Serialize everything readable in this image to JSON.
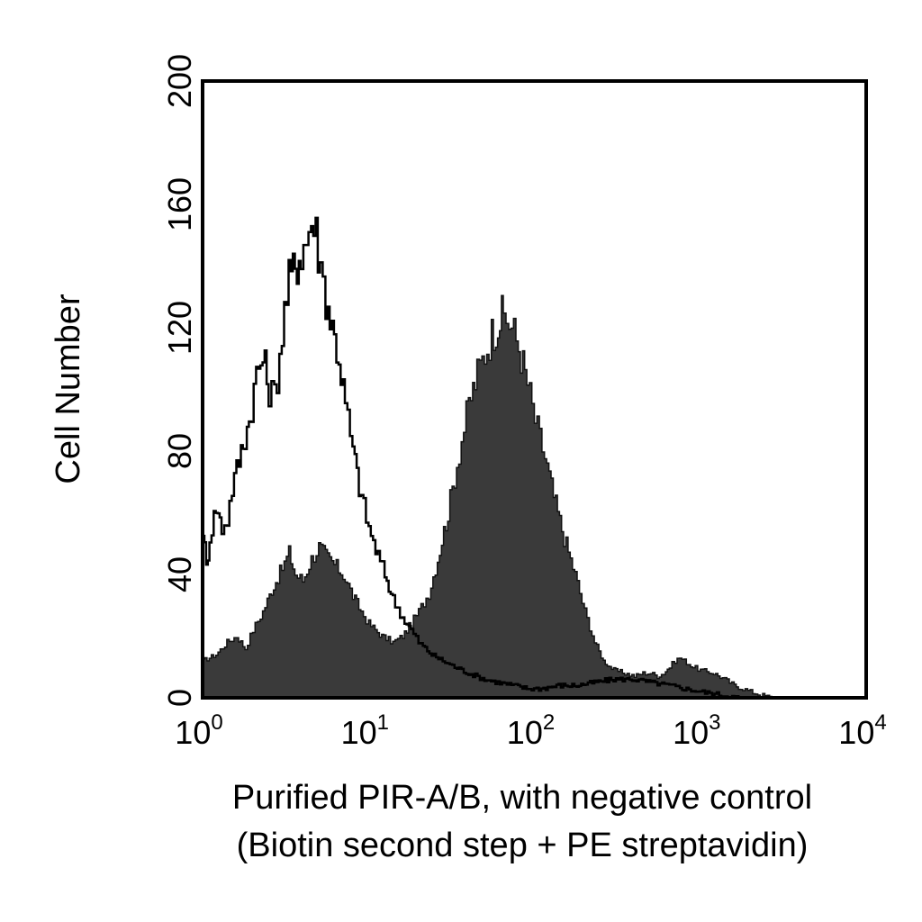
{
  "chart_data": {
    "type": "area",
    "title": "",
    "xlabel_line1": "Purified PIR-A/B, with negative control",
    "xlabel_line2": "(Biotin second step + PE streptavidin)",
    "ylabel": "Cell Number",
    "xscale": "log",
    "xlim": [
      1,
      10000
    ],
    "ylim": [
      0,
      200
    ],
    "x_ticks": [
      {
        "base": "10",
        "exp": "0",
        "value": 1
      },
      {
        "base": "10",
        "exp": "1",
        "value": 10
      },
      {
        "base": "10",
        "exp": "2",
        "value": 100
      },
      {
        "base": "10",
        "exp": "3",
        "value": 1000
      },
      {
        "base": "10",
        "exp": "4",
        "value": 10000
      }
    ],
    "y_ticks": [
      "0",
      "40",
      "80",
      "120",
      "160",
      "200"
    ],
    "grid": false,
    "legend": "none",
    "series": [
      {
        "style": "filled",
        "color": "#3a3a3a",
        "points": [
          [
            1.0,
            12
          ],
          [
            1.2,
            14
          ],
          [
            1.4,
            18
          ],
          [
            1.6,
            20
          ],
          [
            1.8,
            16
          ],
          [
            2.0,
            22
          ],
          [
            2.3,
            28
          ],
          [
            2.6,
            35
          ],
          [
            3.0,
            42
          ],
          [
            3.3,
            47
          ],
          [
            3.6,
            40
          ],
          [
            4.0,
            38
          ],
          [
            4.5,
            45
          ],
          [
            5.0,
            49
          ],
          [
            5.5,
            46
          ],
          [
            6.0,
            44
          ],
          [
            7.0,
            40
          ],
          [
            8.0,
            33
          ],
          [
            9.0,
            28
          ],
          [
            10.0,
            24
          ],
          [
            12.0,
            20
          ],
          [
            14.0,
            18
          ],
          [
            16.0,
            20
          ],
          [
            18.0,
            24
          ],
          [
            20.0,
            28
          ],
          [
            23.0,
            34
          ],
          [
            26.0,
            45
          ],
          [
            30.0,
            60
          ],
          [
            35.0,
            80
          ],
          [
            40.0,
            95
          ],
          [
            45.0,
            105
          ],
          [
            50.0,
            112
          ],
          [
            55.0,
            118
          ],
          [
            60.0,
            122
          ],
          [
            65.0,
            124
          ],
          [
            70.0,
            122
          ],
          [
            80.0,
            114
          ],
          [
            90.0,
            102
          ],
          [
            100.0,
            90
          ],
          [
            115.0,
            78
          ],
          [
            130.0,
            65
          ],
          [
            150.0,
            52
          ],
          [
            175.0,
            40
          ],
          [
            200.0,
            28
          ],
          [
            230.0,
            18
          ],
          [
            260.0,
            12
          ],
          [
            300.0,
            9
          ],
          [
            350.0,
            8
          ],
          [
            400.0,
            7
          ],
          [
            450.0,
            8
          ],
          [
            500.0,
            8
          ],
          [
            550.0,
            7
          ],
          [
            600.0,
            8
          ],
          [
            650.0,
            10
          ],
          [
            700.0,
            12
          ],
          [
            750.0,
            13
          ],
          [
            800.0,
            12
          ],
          [
            900.0,
            10
          ],
          [
            1000.0,
            9
          ],
          [
            1200.0,
            8
          ],
          [
            1400.0,
            6
          ],
          [
            1600.0,
            4
          ],
          [
            1800.0,
            3
          ],
          [
            2000.0,
            2
          ],
          [
            2300.0,
            1
          ],
          [
            2700.0,
            0
          ]
        ]
      },
      {
        "style": "outline",
        "color": "#000000",
        "points": [
          [
            1.0,
            55
          ],
          [
            1.05,
            42
          ],
          [
            1.1,
            52
          ],
          [
            1.2,
            62
          ],
          [
            1.3,
            55
          ],
          [
            1.4,
            58
          ],
          [
            1.5,
            68
          ],
          [
            1.7,
            80
          ],
          [
            1.9,
            90
          ],
          [
            2.1,
            105
          ],
          [
            2.3,
            110
          ],
          [
            2.5,
            100
          ],
          [
            2.7,
            98
          ],
          [
            2.9,
            112
          ],
          [
            3.1,
            125
          ],
          [
            3.3,
            135
          ],
          [
            3.6,
            140
          ],
          [
            3.9,
            145
          ],
          [
            4.2,
            148
          ],
          [
            4.5,
            155
          ],
          [
            4.8,
            150
          ],
          [
            5.1,
            140
          ],
          [
            5.5,
            130
          ],
          [
            6.0,
            120
          ],
          [
            6.6,
            110
          ],
          [
            7.2,
            95
          ],
          [
            8.0,
            80
          ],
          [
            9.0,
            65
          ],
          [
            10.0,
            55
          ],
          [
            11.0,
            48
          ],
          [
            12.5,
            40
          ],
          [
            14.0,
            32
          ],
          [
            16.0,
            26
          ],
          [
            18.0,
            22
          ],
          [
            20.0,
            18
          ],
          [
            24.0,
            14
          ],
          [
            28.0,
            12
          ],
          [
            33.0,
            10
          ],
          [
            40.0,
            8
          ],
          [
            50.0,
            6
          ],
          [
            60.0,
            5
          ],
          [
            75.0,
            4
          ],
          [
            90.0,
            3
          ],
          [
            110.0,
            3
          ],
          [
            140.0,
            4
          ],
          [
            180.0,
            4
          ],
          [
            230.0,
            5
          ],
          [
            300.0,
            6
          ],
          [
            400.0,
            6
          ],
          [
            500.0,
            5
          ],
          [
            650.0,
            4
          ],
          [
            800.0,
            3
          ],
          [
            1000.0,
            2
          ],
          [
            1300.0,
            1
          ],
          [
            1700.0,
            0
          ]
        ]
      }
    ]
  }
}
